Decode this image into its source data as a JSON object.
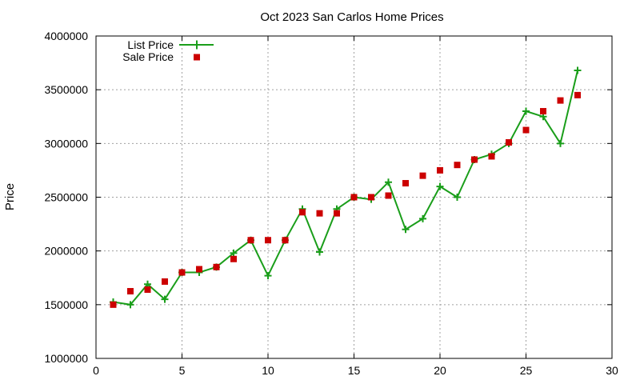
{
  "chart_data": {
    "type": "line",
    "title": "Oct 2023 San Carlos Home Prices",
    "xlabel": "",
    "ylabel": "Price",
    "xlim": [
      0,
      30
    ],
    "ylim": [
      1000000,
      4000000
    ],
    "x_ticks": [
      "0",
      "5",
      "10",
      "15",
      "20",
      "25",
      "30"
    ],
    "y_ticks": [
      "1000000",
      "1500000",
      "2000000",
      "2500000",
      "3000000",
      "3500000",
      "4000000"
    ],
    "grid": true,
    "legend_position": "top-left",
    "x": [
      1,
      2,
      3,
      4,
      5,
      6,
      7,
      8,
      9,
      10,
      11,
      12,
      13,
      14,
      15,
      16,
      17,
      18,
      19,
      20,
      21,
      22,
      23,
      24,
      25,
      26,
      27,
      28
    ],
    "series": [
      {
        "name": "List Price",
        "style": "line-with-plus-markers",
        "color": "#1a9e1a",
        "values": [
          1525000,
          1500000,
          1690000,
          1550000,
          1800000,
          1800000,
          1850000,
          1980000,
          2100000,
          1770000,
          2100000,
          2390000,
          1990000,
          2390000,
          2500000,
          2480000,
          2640000,
          2200000,
          2300000,
          2600000,
          2500000,
          2850000,
          2900000,
          3000000,
          3300000,
          3250000,
          3000000,
          3680000
        ]
      },
      {
        "name": "Sale Price",
        "style": "square-markers",
        "color": "#cc0000",
        "values": [
          1500000,
          1625000,
          1640000,
          1715000,
          1800000,
          1830000,
          1850000,
          1925000,
          2100000,
          2100000,
          2100000,
          2360000,
          2350000,
          2350000,
          2500000,
          2500000,
          2515000,
          2630000,
          2700000,
          2750000,
          2800000,
          2850000,
          2880000,
          3010000,
          3125000,
          3300000,
          3400000,
          3450000
        ]
      }
    ]
  }
}
